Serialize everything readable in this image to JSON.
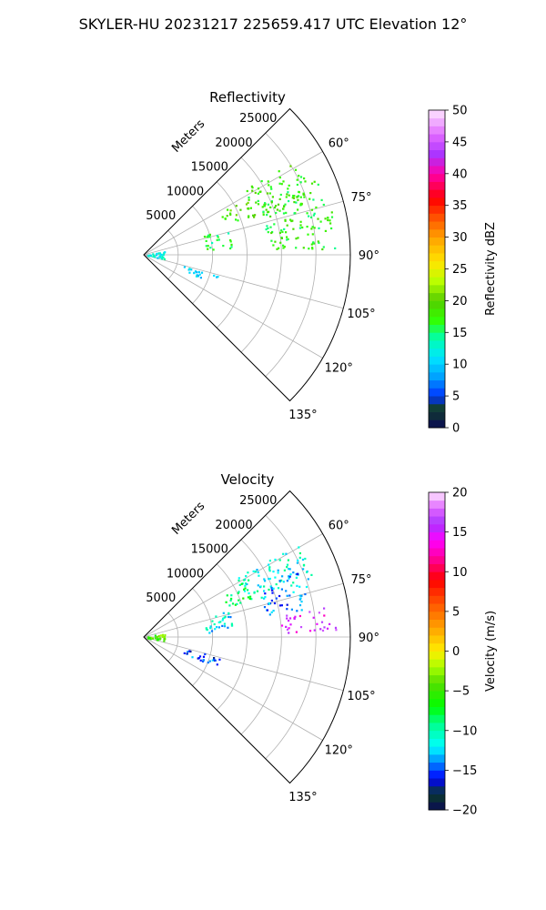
{
  "suptitle": "SKYLER-HU  20231217  225659.417 UTC Elevation 12°",
  "chart_data": [
    {
      "type": "heatmap",
      "title": "Reflectivity",
      "polar_sector": true,
      "theta_range_deg": [
        45,
        135
      ],
      "r_range_m": [
        0,
        30000
      ],
      "r_ticks": [
        5000,
        10000,
        15000,
        20000,
        25000
      ],
      "r_tick_labels": [
        "5000",
        "10000",
        "15000",
        "20000",
        "25000"
      ],
      "r_axis_label": "Meters",
      "theta_ticks_deg": [
        60,
        75,
        90,
        105,
        120,
        135
      ],
      "theta_tick_labels": [
        "60°",
        "75°",
        "90°",
        "105°",
        "120°",
        "135°"
      ],
      "grid": true,
      "colorbar": {
        "label": "Reflectivity dBZ",
        "min": 0,
        "max": 50,
        "ticks": [
          0,
          5,
          10,
          15,
          20,
          25,
          30,
          35,
          40,
          45,
          50
        ],
        "tick_labels": [
          "0",
          "5",
          "10",
          "15",
          "20",
          "25",
          "30",
          "35",
          "40",
          "45",
          "50"
        ]
      },
      "echo_regions": [
        {
          "theta_deg": [
            57,
            72
          ],
          "r_m": [
            16000,
            26000
          ],
          "value": 18
        },
        {
          "theta_deg": [
            66,
            88
          ],
          "r_m": [
            18000,
            28000
          ],
          "value": 17
        },
        {
          "theta_deg": [
            60,
            70
          ],
          "r_m": [
            12500,
            17000
          ],
          "value": 19
        },
        {
          "theta_deg": [
            72,
            86
          ],
          "r_m": [
            9000,
            13000
          ],
          "value": 16
        },
        {
          "theta_deg": [
            78,
            100
          ],
          "r_m": [
            500,
            3000
          ],
          "value": 12
        },
        {
          "theta_deg": [
            105,
            112
          ],
          "r_m": [
            6000,
            12000
          ],
          "value": 11
        }
      ]
    },
    {
      "type": "heatmap",
      "title": "Velocity",
      "polar_sector": true,
      "theta_range_deg": [
        45,
        135
      ],
      "r_range_m": [
        0,
        30000
      ],
      "r_ticks": [
        5000,
        10000,
        15000,
        20000,
        25000
      ],
      "r_tick_labels": [
        "5000",
        "10000",
        "15000",
        "20000",
        "25000"
      ],
      "r_axis_label": "Meters",
      "theta_ticks_deg": [
        60,
        75,
        90,
        105,
        120,
        135
      ],
      "theta_tick_labels": [
        "60°",
        "75°",
        "90°",
        "105°",
        "120°",
        "135°"
      ],
      "grid": true,
      "colorbar": {
        "label": "Velocity (m/s)",
        "min": -20,
        "max": 20,
        "ticks": [
          -20,
          -15,
          -10,
          -5,
          0,
          5,
          10,
          15,
          20
        ],
        "tick_labels": [
          "−20",
          "−15",
          "−10",
          "−5",
          "0",
          "5",
          "10",
          "15",
          "20"
        ]
      },
      "echo_regions": [
        {
          "theta_deg": [
            57,
            72
          ],
          "r_m": [
            16000,
            26000
          ],
          "value": -11
        },
        {
          "theta_deg": [
            66,
            80
          ],
          "r_m": [
            18000,
            25000
          ],
          "value": -14
        },
        {
          "theta_deg": [
            80,
            88
          ],
          "r_m": [
            20000,
            28000
          ],
          "value": 15
        },
        {
          "theta_deg": [
            60,
            70
          ],
          "r_m": [
            12500,
            17000
          ],
          "value": -8
        },
        {
          "theta_deg": [
            72,
            86
          ],
          "r_m": [
            9000,
            13000
          ],
          "value": -12
        },
        {
          "theta_deg": [
            78,
            100
          ],
          "r_m": [
            500,
            3000
          ],
          "value": -4
        },
        {
          "theta_deg": [
            105,
            112
          ],
          "r_m": [
            6000,
            12000
          ],
          "value": -15
        }
      ]
    }
  ]
}
